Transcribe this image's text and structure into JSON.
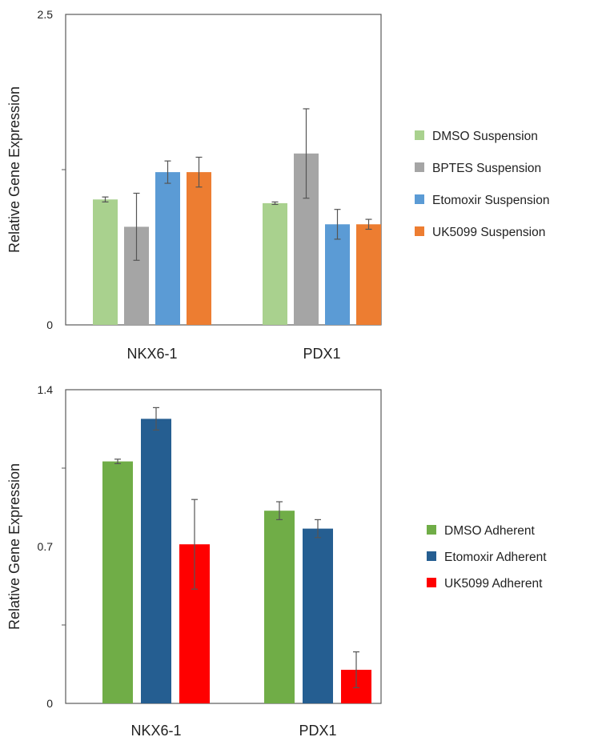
{
  "chart_data": [
    {
      "type": "bar",
      "ylabel": "Relative Gene Expression",
      "ylim": [
        0,
        2.5
      ],
      "yticks": [
        "0",
        "2.5"
      ],
      "minor_ticks": [
        1.25
      ],
      "categories": [
        "NKX6-1",
        "PDX1"
      ],
      "grid": false,
      "legend_position": "right",
      "series": [
        {
          "name": "DMSO Suspension",
          "color": "#a9d18e",
          "values": [
            1.01,
            0.98
          ],
          "errors": [
            0.02,
            0.01
          ]
        },
        {
          "name": "BPTES Suspension",
          "color": "#a5a5a5",
          "values": [
            0.79,
            1.38
          ],
          "errors": [
            0.27,
            0.36
          ]
        },
        {
          "name": "Etomoxir Suspension",
          "color": "#5b9bd5",
          "values": [
            1.23,
            0.81
          ],
          "errors": [
            0.09,
            0.12
          ]
        },
        {
          "name": "UK5099 Suspension",
          "color": "#ed7d31",
          "values": [
            1.23,
            0.81
          ],
          "errors": [
            0.12,
            0.04
          ]
        }
      ]
    },
    {
      "type": "bar",
      "ylabel": "Relative Gene Expression",
      "ylim": [
        0,
        1.4
      ],
      "yticks": [
        "0",
        "0.7",
        "1.4"
      ],
      "minor_ticks": [
        0.35,
        1.05
      ],
      "categories": [
        "NKX6-1",
        "PDX1"
      ],
      "grid": false,
      "legend_position": "right",
      "series": [
        {
          "name": "DMSO Adherent",
          "color": "#70ad47",
          "values": [
            1.08,
            0.86
          ],
          "errors": [
            0.01,
            0.04
          ]
        },
        {
          "name": "Etomoxir Adherent",
          "color": "#255e91",
          "values": [
            1.27,
            0.78
          ],
          "errors": [
            0.05,
            0.04
          ]
        },
        {
          "name": "UK5099 Adherent",
          "color": "#ff0000",
          "values": [
            0.71,
            0.15
          ],
          "errors": [
            0.2,
            0.08
          ]
        }
      ]
    }
  ]
}
